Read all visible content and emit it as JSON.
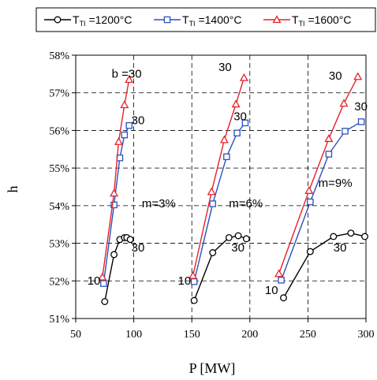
{
  "chart_data": {
    "type": "line",
    "xlabel": "P   [MW]",
    "ylabel": "h",
    "xlim": [
      50,
      300
    ],
    "ylim": [
      0.51,
      0.58
    ],
    "x_ticks": [
      "50",
      "100",
      "150",
      "200",
      "250",
      "300"
    ],
    "y_ticks": [
      "51%",
      "52%",
      "53%",
      "54%",
      "55%",
      "56%",
      "57%",
      "58%"
    ],
    "x_tick_values": [
      50,
      100,
      150,
      200,
      250,
      300
    ],
    "y_tick_values": [
      0.51,
      0.52,
      0.53,
      0.54,
      0.55,
      0.56,
      0.57,
      0.58
    ],
    "grid": "dashed",
    "legend_position": "top",
    "series": [
      {
        "name": "T_TI =1200°C",
        "name_main": "T",
        "name_sub": "TI",
        "name_rest": " =1200°C",
        "color": "#000000",
        "marker": "circle",
        "groups": [
          {
            "x": [
              75,
              83,
              88,
              92,
              94,
              97
            ],
            "y": [
              0.5145,
              0.527,
              0.531,
              0.5315,
              0.5315,
              0.531
            ]
          },
          {
            "x": [
              152,
              168,
              182,
              190,
              197
            ],
            "y": [
              0.5148,
              0.5275,
              0.5315,
              0.532,
              0.5312
            ]
          },
          {
            "x": [
              229,
              252,
              272,
              287,
              299
            ],
            "y": [
              0.5155,
              0.5278,
              0.5318,
              0.5327,
              0.5318
            ]
          }
        ]
      },
      {
        "name": "T_TI =1400°C",
        "name_main": "T",
        "name_sub": "TI",
        "name_rest": " =1400°C",
        "color": "#2a52be",
        "marker": "square",
        "groups": [
          {
            "x": [
              74,
              83,
              88,
              92,
              96
            ],
            "y": [
              0.5193,
              0.5402,
              0.5527,
              0.5588,
              0.5613
            ]
          },
          {
            "x": [
              152,
              168,
              180,
              189,
              196
            ],
            "y": [
              0.5198,
              0.5405,
              0.553,
              0.5593,
              0.562
            ]
          },
          {
            "x": [
              227,
              252,
              268,
              282,
              296
            ],
            "y": [
              0.5202,
              0.541,
              0.5537,
              0.5598,
              0.5623
            ]
          }
        ]
      },
      {
        "name": "T_TI =1600°C",
        "name_main": "T",
        "name_sub": "TI",
        "name_rest": " =1600°C",
        "color": "#e8212a",
        "marker": "triangle",
        "groups": [
          {
            "x": [
              73,
              83,
              87,
              92,
              96
            ],
            "y": [
              0.521,
              0.5433,
              0.557,
              0.5668,
              0.5735
            ]
          },
          {
            "x": [
              151,
              167,
              178,
              188,
              195
            ],
            "y": [
              0.5214,
              0.5437,
              0.5575,
              0.567,
              0.574
            ]
          },
          {
            "x": [
              225,
              251,
              268,
              281,
              293
            ],
            "y": [
              0.5219,
              0.544,
              0.5578,
              0.5672,
              0.5743
            ]
          }
        ]
      }
    ],
    "annotations": [
      {
        "text": "b =30",
        "x": 81,
        "y": 0.574
      },
      {
        "text": "30",
        "x": 98,
        "y": 0.5617
      },
      {
        "text": "30",
        "x": 98,
        "y": 0.5278
      },
      {
        "text": "10",
        "x": 60,
        "y": 0.519
      },
      {
        "text": "m=3%",
        "x": 107,
        "y": 0.5395
      },
      {
        "text": "30",
        "x": 173,
        "y": 0.5758
      },
      {
        "text": "30",
        "x": 186,
        "y": 0.5627
      },
      {
        "text": "30",
        "x": 184,
        "y": 0.5278
      },
      {
        "text": "10",
        "x": 138,
        "y": 0.519
      },
      {
        "text": "m=6%",
        "x": 182,
        "y": 0.5395
      },
      {
        "text": "30",
        "x": 268,
        "y": 0.5735
      },
      {
        "text": "30",
        "x": 290,
        "y": 0.5653
      },
      {
        "text": "30",
        "x": 272,
        "y": 0.5278
      },
      {
        "text": "10",
        "x": 213,
        "y": 0.5165
      },
      {
        "text": "m=9%",
        "x": 259,
        "y": 0.545
      }
    ]
  }
}
